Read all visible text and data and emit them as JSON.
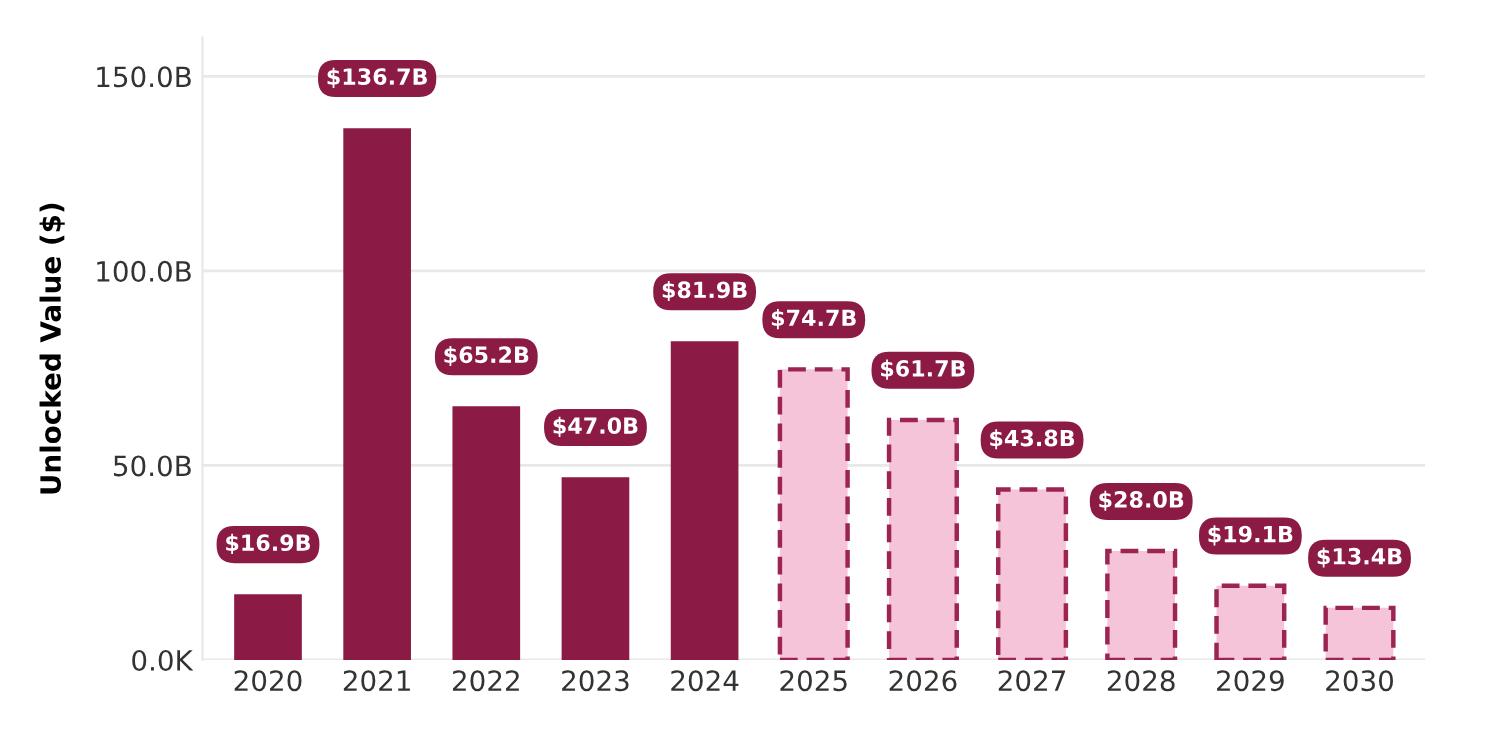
{
  "chart_data": {
    "type": "bar",
    "ylabel": "Unlocked Value ($)",
    "categories": [
      "2020",
      "2021",
      "2022",
      "2023",
      "2024",
      "2025",
      "2026",
      "2027",
      "2028",
      "2029",
      "2030"
    ],
    "series": [
      {
        "color": "#8b1a45",
        "line_style": "solid",
        "values": [
          16.9,
          136.7,
          65.2,
          47.0,
          81.9,
          null,
          null,
          null,
          null,
          null,
          null
        ],
        "value_labels": [
          "$16.9B",
          "$136.7B",
          "$65.2B",
          "$47.0B",
          "$81.9B",
          null,
          null,
          null,
          null,
          null,
          null
        ]
      },
      {
        "color": "#f5c4d8",
        "line_style": "dashed",
        "values": [
          null,
          null,
          null,
          null,
          null,
          74.7,
          61.7,
          43.8,
          28.0,
          19.1,
          13.4
        ],
        "value_labels": [
          null,
          null,
          null,
          null,
          null,
          "$74.7B",
          "$61.7B",
          "$43.8B",
          "$28.0B",
          "$19.1B",
          "$13.4B"
        ]
      }
    ],
    "ylim": [
      0,
      160
    ],
    "yticks": [
      {
        "value": 0,
        "label": "0.0K"
      },
      {
        "value": 50,
        "label": "50.0B"
      },
      {
        "value": 100,
        "label": "100.0B"
      },
      {
        "value": 150,
        "label": "150.0B"
      }
    ],
    "grid": "y",
    "legend": false
  }
}
